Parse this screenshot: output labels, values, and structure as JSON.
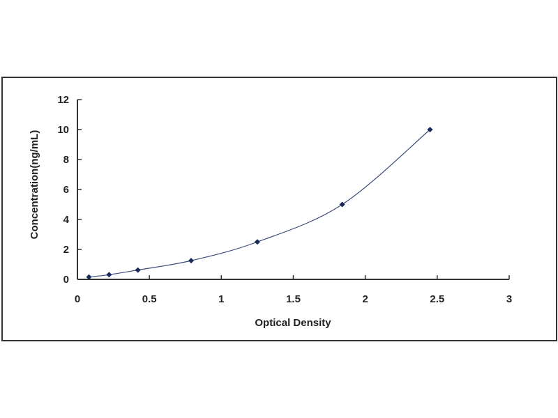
{
  "chart_data": {
    "type": "line",
    "title": "",
    "xlabel": "Optical Density",
    "ylabel": "Concentration(ng/mL)",
    "xlim": [
      0,
      3
    ],
    "ylim": [
      0,
      12
    ],
    "xticks": [
      "0",
      "0.5",
      "1",
      "1.5",
      "2",
      "2.5",
      "3"
    ],
    "yticks": [
      "0",
      "2",
      "4",
      "6",
      "8",
      "10",
      "12"
    ],
    "grid": false,
    "legend": "none",
    "markers": "diamond",
    "smooth": true,
    "series": [
      {
        "x": [
          0.08,
          0.22,
          0.42,
          0.79,
          1.25,
          1.84,
          2.45
        ],
        "y": [
          0.156,
          0.312,
          0.625,
          1.25,
          2.5,
          5,
          10
        ]
      }
    ],
    "colors": {
      "line": "#3a4a7a",
      "marker": "#1a2a5a",
      "axis": "#333333"
    }
  }
}
